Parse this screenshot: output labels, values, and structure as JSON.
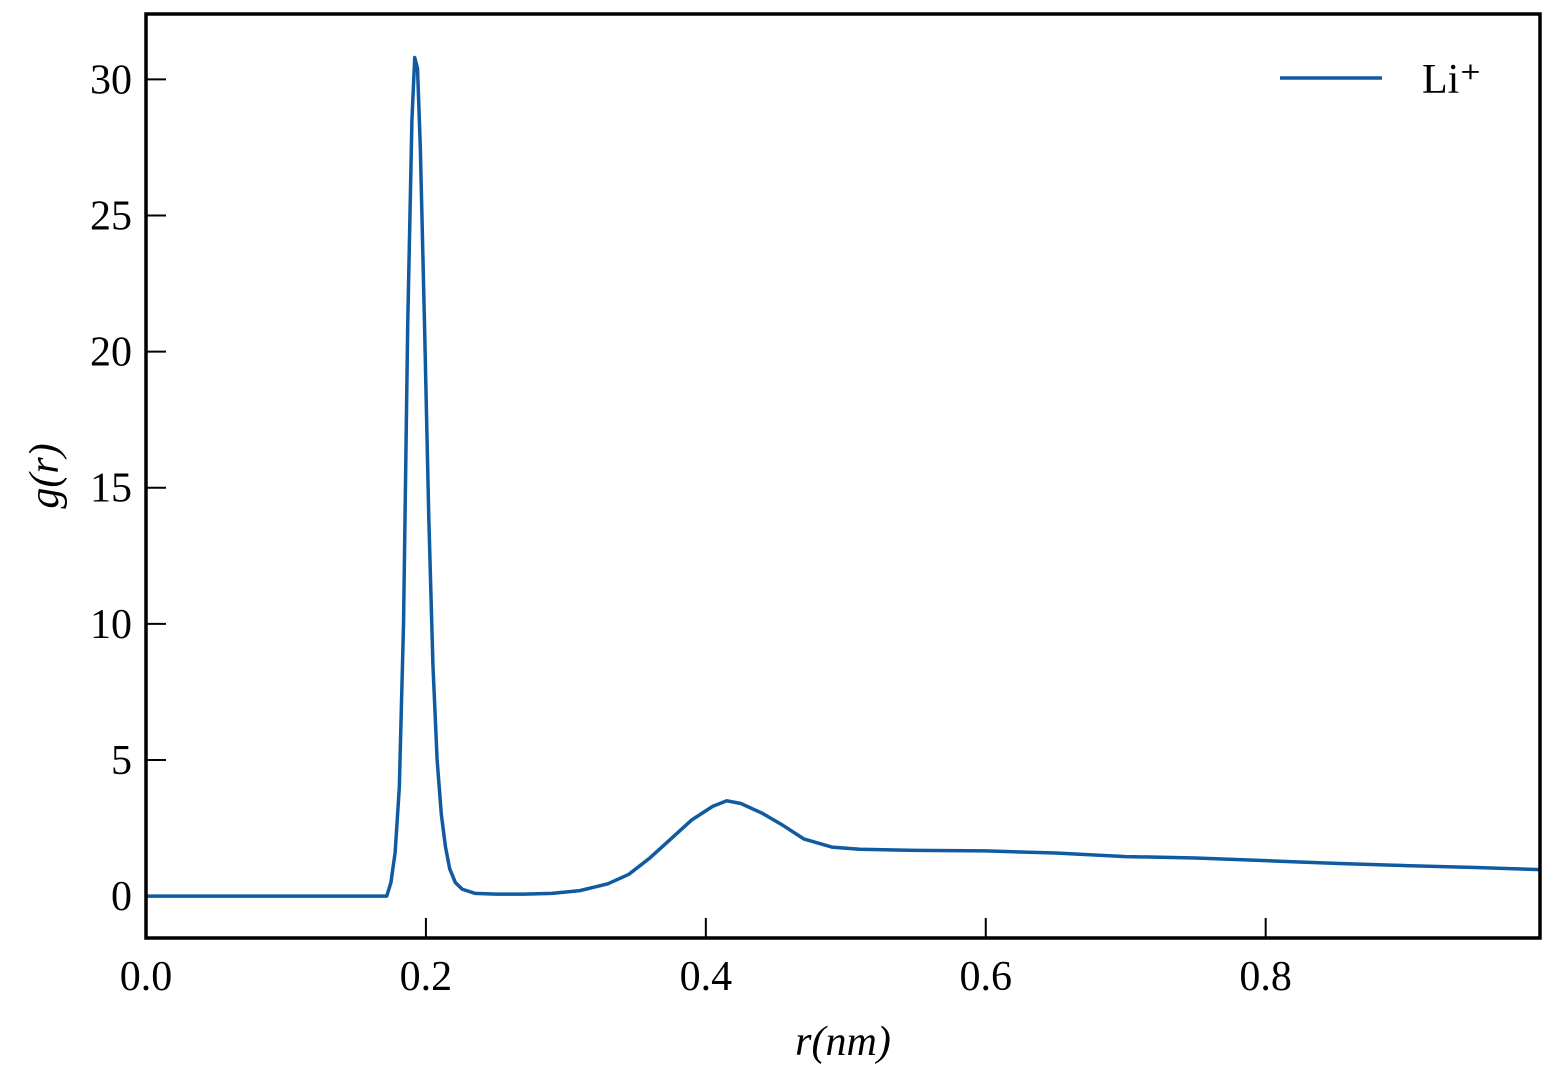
{
  "chart_data": {
    "type": "line",
    "x_label": "r(nm)",
    "y_label": "g(r)",
    "x": [
      0,
      0.1,
      0.172,
      0.175,
      0.178,
      0.181,
      0.184,
      0.187,
      0.19,
      0.192,
      0.194,
      0.196,
      0.199,
      0.202,
      0.205,
      0.208,
      0.211,
      0.214,
      0.217,
      0.221,
      0.226,
      0.235,
      0.25,
      0.27,
      0.29,
      0.31,
      0.33,
      0.345,
      0.36,
      0.375,
      0.39,
      0.405,
      0.415,
      0.425,
      0.44,
      0.455,
      0.47,
      0.49,
      0.51,
      0.55,
      0.6,
      0.65,
      0.7,
      0.75,
      0.8,
      0.85,
      0.9,
      0.95,
      0.996
    ],
    "series": [
      {
        "name": "Li⁺",
        "color": "#0f5aa0",
        "values": [
          0,
          0,
          0,
          0.5,
          1.6,
          4,
          10,
          21,
          28.5,
          30.8,
          30.4,
          27.5,
          21,
          14,
          8.5,
          5,
          3,
          1.8,
          1.0,
          0.5,
          0.25,
          0.1,
          0.07,
          0.07,
          0.1,
          0.2,
          0.45,
          0.8,
          1.4,
          2.1,
          2.8,
          3.3,
          3.5,
          3.4,
          3.05,
          2.6,
          2.1,
          1.8,
          1.72,
          1.68,
          1.66,
          1.58,
          1.45,
          1.4,
          1.3,
          1.2,
          1.12,
          1.05,
          0.97
        ]
      }
    ],
    "xlim": [
      0,
      0.996
    ],
    "ylim": [
      -1.54,
      32.4
    ],
    "xticks": [
      {
        "value": 0,
        "label": "0.0"
      },
      0.2,
      0.4,
      0.6,
      0.8
    ],
    "yticks": [
      0,
      5,
      10,
      15,
      20,
      25,
      30
    ],
    "legend": "upper right"
  }
}
